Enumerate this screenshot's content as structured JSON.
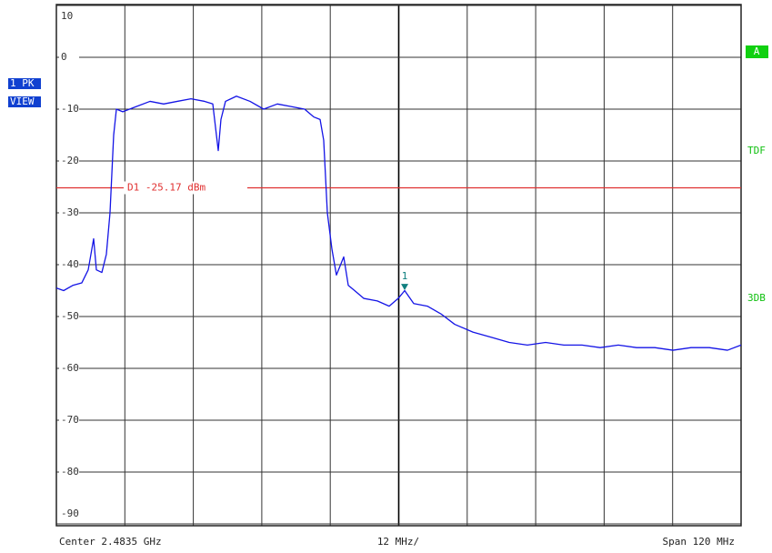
{
  "chart_data": {
    "type": "line",
    "ylim": [
      -90,
      10
    ],
    "yticks": [
      10,
      0,
      -10,
      -20,
      -30,
      -40,
      -50,
      -60,
      -70,
      -80,
      -90
    ],
    "xlim": [
      2.4235,
      2.5435
    ],
    "xticks": [
      2.4235,
      2.4355,
      2.4475,
      2.4595,
      2.4715,
      2.4835,
      2.4955,
      2.5075,
      2.5195,
      2.5315,
      2.5435
    ],
    "grid": true,
    "series": [
      {
        "color": "#1414e6",
        "x": [
          2.4235,
          2.42477,
          2.42637,
          2.42796,
          2.42908,
          2.43003,
          2.43051,
          2.43147,
          2.43226,
          2.4329,
          2.43354,
          2.43402,
          2.43513,
          2.43752,
          2.43991,
          2.4423,
          2.44469,
          2.44709,
          2.44948,
          2.45091,
          2.45155,
          2.45187,
          2.45234,
          2.45314,
          2.45505,
          2.45744,
          2.45983,
          2.46222,
          2.46461,
          2.467,
          2.4686,
          2.46972,
          2.47035,
          2.47099,
          2.47179,
          2.47258,
          2.47386,
          2.47466,
          2.47577,
          2.47736,
          2.47975,
          2.48183,
          2.48342,
          2.48454,
          2.48613,
          2.48852,
          2.49091,
          2.4933,
          2.49649,
          2.49968,
          2.50287,
          2.50605,
          2.50924,
          2.51243,
          2.51562,
          2.5188,
          2.52199,
          2.52518,
          2.52837,
          2.53155,
          2.53474,
          2.53793,
          2.54112,
          2.5435
        ],
        "values": [
          -44.5,
          -45,
          -44,
          -43.5,
          -41,
          -35,
          -41,
          -41.5,
          -38,
          -30,
          -15,
          -10,
          -10.5,
          -9.5,
          -8.5,
          -9,
          -8.5,
          -8,
          -8.5,
          -9,
          -15,
          -18,
          -12,
          -8.5,
          -7.5,
          -8.5,
          -10,
          -9,
          -9.5,
          -10,
          -11.5,
          -12,
          -16,
          -30,
          -37,
          -42,
          -38.5,
          -44,
          -45,
          -46.5,
          -47,
          -48,
          -46.5,
          -45,
          -47.5,
          -48,
          -49.5,
          -51.5,
          -53,
          -54,
          -55,
          -55.5,
          -55,
          -55.5,
          -55.5,
          -56,
          -55.5,
          -56,
          -56,
          -56.5,
          -56,
          -56,
          -56.5,
          -55.5
        ]
      }
    ],
    "display_line": {
      "value": -25.17,
      "label": "D1 -25.17 dBm",
      "color": "#e03030"
    },
    "marker": {
      "x": 2.48454,
      "value": -44.4,
      "label": "1",
      "color": "#108080"
    },
    "left_labels": [
      "1 PK",
      "VIEW"
    ],
    "right_labels": {
      "box": "A",
      "texts": [
        "TDF",
        "3DB"
      ]
    },
    "footer": {
      "center": "Center 2.4835 GHz",
      "division": "12 MHz/",
      "span": "Span 120 MHz"
    }
  }
}
